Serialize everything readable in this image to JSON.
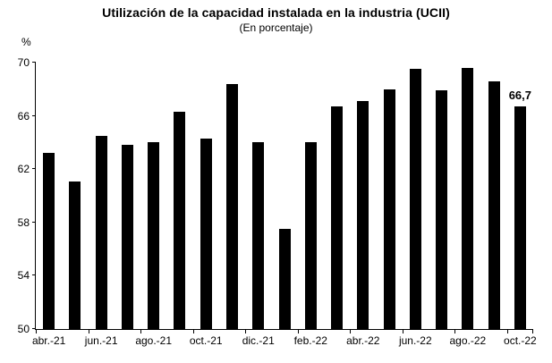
{
  "title": "Utilización de la capacidad instalada en la industria (UCII)",
  "subtitle": "(En porcentaje)",
  "y_axis_unit": "%",
  "colors": {
    "bar": "#000000",
    "axis": "#000000",
    "background": "#ffffff",
    "text": "#000000"
  },
  "chart_data": {
    "type": "bar",
    "title": "Utilización de la capacidad instalada en la industria (UCII)",
    "subtitle": "(En porcentaje)",
    "ylabel": "%",
    "xlabel": "",
    "ylim": [
      50,
      70
    ],
    "y_ticks": [
      50,
      54,
      58,
      62,
      66,
      70
    ],
    "grid": "off",
    "legend": "none",
    "categories": [
      "abr.-21",
      "may.-21",
      "jun.-21",
      "jul.-21",
      "ago.-21",
      "sep.-21",
      "oct.-21",
      "nov.-21",
      "dic.-21",
      "ene.-22",
      "feb.-22",
      "mar.-22",
      "abr.-22",
      "may.-22",
      "jun.-22",
      "jul.-22",
      "ago.-22",
      "sep.-22",
      "oct.-22"
    ],
    "values": [
      63.2,
      61.1,
      64.5,
      63.8,
      64.0,
      66.3,
      64.3,
      68.4,
      64.0,
      57.5,
      64.0,
      66.7,
      67.1,
      68.0,
      69.5,
      67.9,
      69.6,
      68.6,
      66.7
    ],
    "x_tick_labels": [
      "abr.-21",
      "jun.-21",
      "ago.-21",
      "oct.-21",
      "dic.-21",
      "feb.-22",
      "abr.-22",
      "jun.-22",
      "ago.-22",
      "oct.-22"
    ],
    "x_label_every": 2,
    "data_label": {
      "text": "66,7",
      "category": "oct.-22",
      "index": 18
    }
  }
}
